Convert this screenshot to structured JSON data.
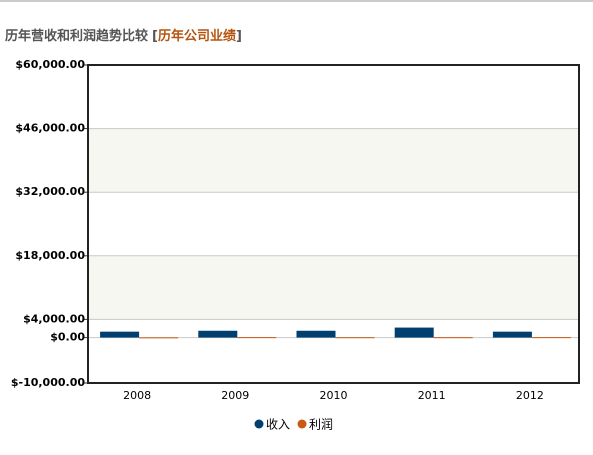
{
  "chart_data": {
    "type": "bar",
    "title": "历年营收和利润趋势比较",
    "title_open": "[",
    "title_link": "历年公司业绩",
    "title_close": "]",
    "categories": [
      "2008",
      "2009",
      "2010",
      "2011",
      "2012"
    ],
    "series": [
      {
        "name": "收入",
        "color": "#003f6f",
        "values": [
          1300,
          1500,
          1500,
          2200,
          1300
        ]
      },
      {
        "name": "利润",
        "color": "#c85a14",
        "values": [
          50,
          100,
          80,
          90,
          100
        ]
      }
    ],
    "ylim": [
      -10000,
      60000
    ],
    "yticks": [
      {
        "value": -10000,
        "label": "$-10,000.00"
      },
      {
        "value": 0,
        "label": "$0.00"
      },
      {
        "value": 4000,
        "label": "$4,000.00"
      },
      {
        "value": 18000,
        "label": "$18,000.00"
      },
      {
        "value": 32000,
        "label": "$32,000.00"
      },
      {
        "value": 46000,
        "label": "$46,000.00"
      },
      {
        "value": 60000,
        "label": "$60,000.00"
      }
    ],
    "grid": true,
    "legend": "bottom"
  }
}
